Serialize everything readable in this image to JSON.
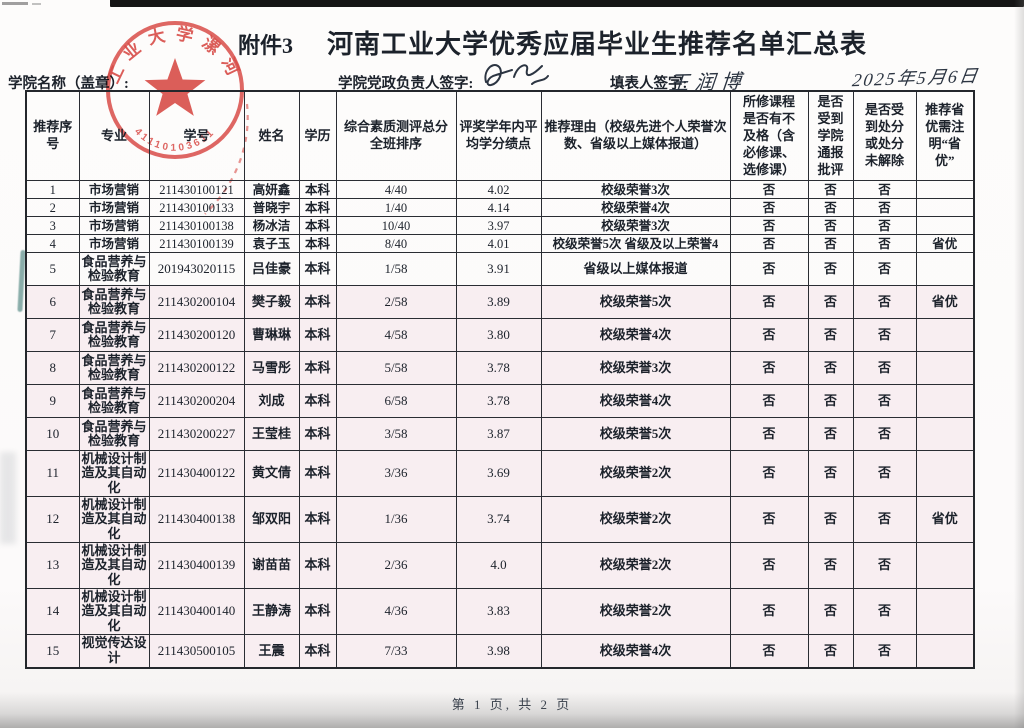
{
  "page": {
    "attachment_label": "附件3",
    "title": "河南工业大学优秀应届毕业生推荐名单汇总表",
    "college_label": "学院名称（盖章）:",
    "leader_sign_label": "学院党政负责人签字:",
    "filler_sign_label": "填表人签字:",
    "filler_signature": "王润博",
    "date": "2025年5月6日",
    "footer": "第 1 页, 共 2 页"
  },
  "stamp": {
    "arc_text": "工业大学漯河",
    "serial": "41110103611",
    "color": "#d5342f"
  },
  "table": {
    "headers": [
      {
        "key": "seq",
        "label": "推荐序号"
      },
      {
        "key": "major",
        "label": "专业"
      },
      {
        "key": "sid",
        "label": "学号"
      },
      {
        "key": "name",
        "label": "姓名"
      },
      {
        "key": "degree",
        "label": "学历"
      },
      {
        "key": "rank",
        "label": "综合素质测评总分全班排序"
      },
      {
        "key": "gpa",
        "label": "评奖学年内平均学分绩点"
      },
      {
        "key": "reason",
        "label": "推荐理由（校级先进个人荣誉次数、省级以上媒体报道）"
      },
      {
        "key": "fail",
        "label": "所修课程是否有不及格（含必修课、选修课）"
      },
      {
        "key": "notice",
        "label": "是否受到学院通报批评"
      },
      {
        "key": "penalty",
        "label": "是否受到处分或处分未解除"
      },
      {
        "key": "prov",
        "label": "推荐省优需注明“省优”"
      }
    ],
    "rows": [
      {
        "seq": "1",
        "major": "市场营销",
        "sid": "211430100121",
        "name": "高妍鑫",
        "degree": "本科",
        "rank": "4/40",
        "gpa": "4.02",
        "reason": "校级荣誉3次",
        "fail": "否",
        "notice": "否",
        "penalty": "否",
        "prov": ""
      },
      {
        "seq": "2",
        "major": "市场营销",
        "sid": "211430100133",
        "name": "普晓宇",
        "degree": "本科",
        "rank": "1/40",
        "gpa": "4.14",
        "reason": "校级荣誉4次",
        "fail": "否",
        "notice": "否",
        "penalty": "否",
        "prov": ""
      },
      {
        "seq": "3",
        "major": "市场营销",
        "sid": "211430100138",
        "name": "杨冰洁",
        "degree": "本科",
        "rank": "10/40",
        "gpa": "3.97",
        "reason": "校级荣誉3次",
        "fail": "否",
        "notice": "否",
        "penalty": "否",
        "prov": ""
      },
      {
        "seq": "4",
        "major": "市场营销",
        "sid": "211430100139",
        "name": "袁子玉",
        "degree": "本科",
        "rank": "8/40",
        "gpa": "4.01",
        "reason": "校级荣誉5次 省级及以上荣誉4",
        "fail": "否",
        "notice": "否",
        "penalty": "否",
        "prov": "省优"
      },
      {
        "seq": "5",
        "major": "食品营养与检验教育",
        "sid": "201943020115",
        "name": "吕佳豪",
        "degree": "本科",
        "rank": "1/58",
        "gpa": "3.91",
        "reason": "省级以上媒体报道",
        "fail": "否",
        "notice": "否",
        "penalty": "否",
        "prov": ""
      },
      {
        "seq": "6",
        "major": "食品营养与检验教育",
        "sid": "211430200104",
        "name": "樊子毅",
        "degree": "本科",
        "rank": "2/58",
        "gpa": "3.89",
        "reason": "校级荣誉5次",
        "fail": "否",
        "notice": "否",
        "penalty": "否",
        "prov": "省优"
      },
      {
        "seq": "7",
        "major": "食品营养与检验教育",
        "sid": "211430200120",
        "name": "曹琳琳",
        "degree": "本科",
        "rank": "4/58",
        "gpa": "3.80",
        "reason": "校级荣誉4次",
        "fail": "否",
        "notice": "否",
        "penalty": "否",
        "prov": ""
      },
      {
        "seq": "8",
        "major": "食品营养与检验教育",
        "sid": "211430200122",
        "name": "马雪彤",
        "degree": "本科",
        "rank": "5/58",
        "gpa": "3.78",
        "reason": "校级荣誉3次",
        "fail": "否",
        "notice": "否",
        "penalty": "否",
        "prov": ""
      },
      {
        "seq": "9",
        "major": "食品营养与检验教育",
        "sid": "211430200204",
        "name": "刘成",
        "degree": "本科",
        "rank": "6/58",
        "gpa": "3.78",
        "reason": "校级荣誉4次",
        "fail": "否",
        "notice": "否",
        "penalty": "否",
        "prov": ""
      },
      {
        "seq": "10",
        "major": "食品营养与检验教育",
        "sid": "211430200227",
        "name": "王莹桂",
        "degree": "本科",
        "rank": "3/58",
        "gpa": "3.87",
        "reason": "校级荣誉5次",
        "fail": "否",
        "notice": "否",
        "penalty": "否",
        "prov": ""
      },
      {
        "seq": "11",
        "major": "机械设计制造及其自动化",
        "sid": "211430400122",
        "name": "黄文倩",
        "degree": "本科",
        "rank": "3/36",
        "gpa": "3.69",
        "reason": "校级荣誉2次",
        "fail": "否",
        "notice": "否",
        "penalty": "否",
        "prov": ""
      },
      {
        "seq": "12",
        "major": "机械设计制造及其自动化",
        "sid": "211430400138",
        "name": "邹双阳",
        "degree": "本科",
        "rank": "1/36",
        "gpa": "3.74",
        "reason": "校级荣誉2次",
        "fail": "否",
        "notice": "否",
        "penalty": "否",
        "prov": "省优"
      },
      {
        "seq": "13",
        "major": "机械设计制造及其自动化",
        "sid": "211430400139",
        "name": "谢苗苗",
        "degree": "本科",
        "rank": "2/36",
        "gpa": "4.0",
        "reason": "校级荣誉2次",
        "fail": "否",
        "notice": "否",
        "penalty": "否",
        "prov": ""
      },
      {
        "seq": "14",
        "major": "机械设计制造及其自动化",
        "sid": "211430400140",
        "name": "王静涛",
        "degree": "本科",
        "rank": "4/36",
        "gpa": "3.83",
        "reason": "校级荣誉2次",
        "fail": "否",
        "notice": "否",
        "penalty": "否",
        "prov": ""
      },
      {
        "seq": "15",
        "major": "视觉传达设计",
        "sid": "211430500105",
        "name": "王震",
        "degree": "本科",
        "rank": "7/33",
        "gpa": "3.98",
        "reason": "校级荣誉4次",
        "fail": "否",
        "notice": "否",
        "penalty": "否",
        "prov": ""
      }
    ]
  }
}
